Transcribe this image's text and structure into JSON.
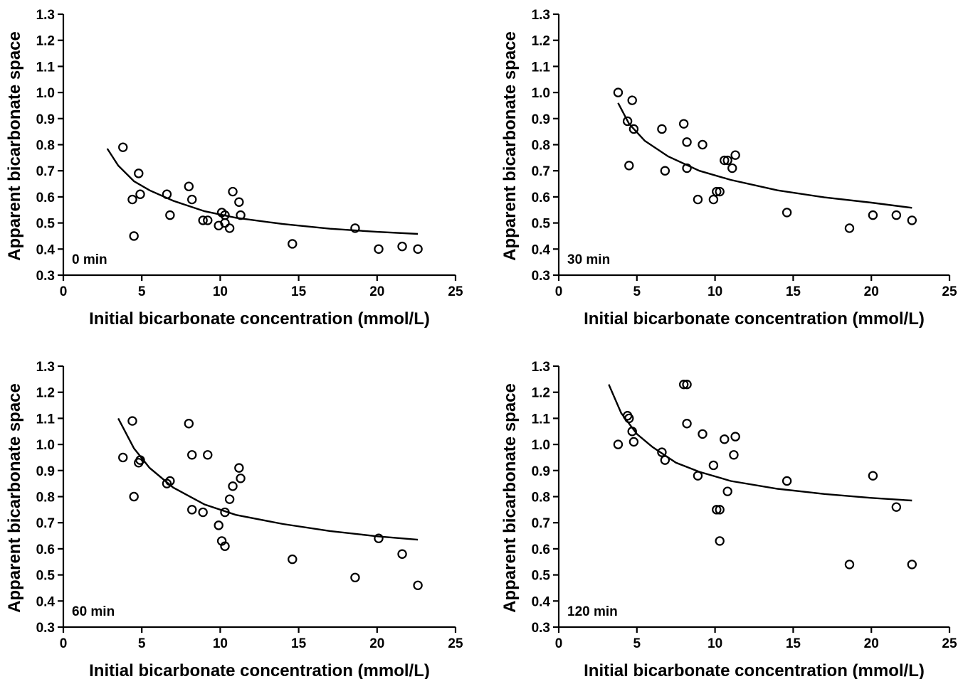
{
  "chart_data": [
    {
      "type": "scatter",
      "panel_label": "0 min",
      "xlabel": "Initial bicarbonate concentration (mmol/L)",
      "ylabel": "Apparent bicarbonate space",
      "xlim": [
        0,
        25
      ],
      "ylim": [
        0.3,
        1.3
      ],
      "xticks": [
        "0",
        "5",
        "10",
        "15",
        "20",
        "25"
      ],
      "yticks": [
        "0.3",
        "0.4",
        "0.5",
        "0.6",
        "0.7",
        "0.8",
        "0.9",
        "1.0",
        "1.1",
        "1.2",
        "1.3"
      ],
      "points": [
        {
          "x": 3.8,
          "y": 0.79
        },
        {
          "x": 4.4,
          "y": 0.59
        },
        {
          "x": 4.5,
          "y": 0.45
        },
        {
          "x": 4.8,
          "y": 0.69
        },
        {
          "x": 4.9,
          "y": 0.61
        },
        {
          "x": 6.6,
          "y": 0.61
        },
        {
          "x": 6.8,
          "y": 0.53
        },
        {
          "x": 8.0,
          "y": 0.64
        },
        {
          "x": 8.2,
          "y": 0.59
        },
        {
          "x": 8.9,
          "y": 0.51
        },
        {
          "x": 9.2,
          "y": 0.51
        },
        {
          "x": 9.9,
          "y": 0.49
        },
        {
          "x": 10.1,
          "y": 0.54
        },
        {
          "x": 10.3,
          "y": 0.53
        },
        {
          "x": 10.3,
          "y": 0.5
        },
        {
          "x": 10.6,
          "y": 0.48
        },
        {
          "x": 10.8,
          "y": 0.62
        },
        {
          "x": 11.2,
          "y": 0.58
        },
        {
          "x": 11.3,
          "y": 0.53
        },
        {
          "x": 14.6,
          "y": 0.42
        },
        {
          "x": 18.6,
          "y": 0.48
        },
        {
          "x": 20.1,
          "y": 0.4
        },
        {
          "x": 21.6,
          "y": 0.41
        },
        {
          "x": 22.6,
          "y": 0.4
        }
      ],
      "fit_curve": {
        "x": [
          2.8,
          3.5,
          4.5,
          5.5,
          7,
          9,
          11,
          14,
          17,
          20,
          22.6
        ],
        "y": [
          0.785,
          0.72,
          0.66,
          0.625,
          0.585,
          0.545,
          0.52,
          0.496,
          0.478,
          0.466,
          0.458
        ]
      }
    },
    {
      "type": "scatter",
      "panel_label": "30 min",
      "xlabel": "Initial bicarbonate concentration (mmol/L)",
      "ylabel": "Apparent bicarbonate space",
      "xlim": [
        0,
        25
      ],
      "ylim": [
        0.3,
        1.3
      ],
      "xticks": [
        "0",
        "5",
        "10",
        "15",
        "20",
        "25"
      ],
      "yticks": [
        "0.3",
        "0.4",
        "0.5",
        "0.6",
        "0.7",
        "0.8",
        "0.9",
        "1.0",
        "1.1",
        "1.2",
        "1.3"
      ],
      "points": [
        {
          "x": 3.8,
          "y": 1.0
        },
        {
          "x": 4.4,
          "y": 0.89
        },
        {
          "x": 4.5,
          "y": 0.72
        },
        {
          "x": 4.7,
          "y": 0.97
        },
        {
          "x": 4.8,
          "y": 0.86
        },
        {
          "x": 6.6,
          "y": 0.86
        },
        {
          "x": 6.8,
          "y": 0.7
        },
        {
          "x": 8.0,
          "y": 0.88
        },
        {
          "x": 8.2,
          "y": 0.81
        },
        {
          "x": 8.2,
          "y": 0.71
        },
        {
          "x": 8.9,
          "y": 0.59
        },
        {
          "x": 9.2,
          "y": 0.8
        },
        {
          "x": 9.9,
          "y": 0.59
        },
        {
          "x": 10.1,
          "y": 0.62
        },
        {
          "x": 10.3,
          "y": 0.62
        },
        {
          "x": 10.6,
          "y": 0.74
        },
        {
          "x": 10.8,
          "y": 0.74
        },
        {
          "x": 11.1,
          "y": 0.71
        },
        {
          "x": 11.3,
          "y": 0.76
        },
        {
          "x": 14.6,
          "y": 0.54
        },
        {
          "x": 18.6,
          "y": 0.48
        },
        {
          "x": 20.1,
          "y": 0.53
        },
        {
          "x": 21.6,
          "y": 0.53
        },
        {
          "x": 22.6,
          "y": 0.51
        }
      ],
      "fit_curve": {
        "x": [
          3.8,
          4.5,
          5.5,
          7,
          9,
          11,
          14,
          17,
          20,
          22.6
        ],
        "y": [
          0.96,
          0.88,
          0.815,
          0.755,
          0.7,
          0.665,
          0.625,
          0.598,
          0.578,
          0.558
        ]
      }
    },
    {
      "type": "scatter",
      "panel_label": "60 min",
      "xlabel": "Initial bicarbonate concentration (mmol/L)",
      "ylabel": "Apparent bicarbonate space",
      "xlim": [
        0,
        25
      ],
      "ylim": [
        0.3,
        1.3
      ],
      "xticks": [
        "0",
        "5",
        "10",
        "15",
        "20",
        "25"
      ],
      "yticks": [
        "0.3",
        "0.4",
        "0.5",
        "0.6",
        "0.7",
        "0.8",
        "0.9",
        "1.0",
        "1.1",
        "1.2",
        "1.3"
      ],
      "points": [
        {
          "x": 3.8,
          "y": 0.95
        },
        {
          "x": 4.4,
          "y": 1.09
        },
        {
          "x": 4.5,
          "y": 0.8
        },
        {
          "x": 4.8,
          "y": 0.93
        },
        {
          "x": 4.9,
          "y": 0.94
        },
        {
          "x": 6.6,
          "y": 0.85
        },
        {
          "x": 6.8,
          "y": 0.86
        },
        {
          "x": 8.0,
          "y": 1.08
        },
        {
          "x": 8.2,
          "y": 0.96
        },
        {
          "x": 8.2,
          "y": 0.75
        },
        {
          "x": 8.9,
          "y": 0.74
        },
        {
          "x": 9.2,
          "y": 0.96
        },
        {
          "x": 9.9,
          "y": 0.69
        },
        {
          "x": 10.1,
          "y": 0.63
        },
        {
          "x": 10.3,
          "y": 0.61
        },
        {
          "x": 10.3,
          "y": 0.74
        },
        {
          "x": 10.6,
          "y": 0.79
        },
        {
          "x": 10.8,
          "y": 0.84
        },
        {
          "x": 11.2,
          "y": 0.91
        },
        {
          "x": 11.3,
          "y": 0.87
        },
        {
          "x": 14.6,
          "y": 0.56
        },
        {
          "x": 18.6,
          "y": 0.49
        },
        {
          "x": 20.1,
          "y": 0.64
        },
        {
          "x": 21.6,
          "y": 0.58
        },
        {
          "x": 22.6,
          "y": 0.46
        }
      ],
      "fit_curve": {
        "x": [
          3.5,
          4.5,
          5.5,
          7,
          9,
          11,
          14,
          17,
          20,
          22.6
        ],
        "y": [
          1.1,
          0.985,
          0.91,
          0.835,
          0.77,
          0.73,
          0.695,
          0.668,
          0.648,
          0.635
        ]
      }
    },
    {
      "type": "scatter",
      "panel_label": "120 min",
      "xlabel": "Initial bicarbonate concentration (mmol/L)",
      "ylabel": "Apparent bicarbonate space",
      "xlim": [
        0,
        25
      ],
      "ylim": [
        0.3,
        1.3
      ],
      "xticks": [
        "0",
        "5",
        "10",
        "15",
        "20",
        "25"
      ],
      "yticks": [
        "0.3",
        "0.4",
        "0.5",
        "0.6",
        "0.7",
        "0.8",
        "0.9",
        "1.0",
        "1.1",
        "1.2",
        "1.3"
      ],
      "points": [
        {
          "x": 3.8,
          "y": 1.0
        },
        {
          "x": 4.4,
          "y": 1.11
        },
        {
          "x": 4.5,
          "y": 1.1
        },
        {
          "x": 4.7,
          "y": 1.05
        },
        {
          "x": 4.8,
          "y": 1.01
        },
        {
          "x": 6.6,
          "y": 0.97
        },
        {
          "x": 6.8,
          "y": 0.94
        },
        {
          "x": 8.0,
          "y": 1.23
        },
        {
          "x": 8.2,
          "y": 1.23
        },
        {
          "x": 8.2,
          "y": 1.08
        },
        {
          "x": 8.9,
          "y": 0.88
        },
        {
          "x": 9.2,
          "y": 1.04
        },
        {
          "x": 9.9,
          "y": 0.92
        },
        {
          "x": 10.1,
          "y": 0.75
        },
        {
          "x": 10.3,
          "y": 0.75
        },
        {
          "x": 10.3,
          "y": 0.63
        },
        {
          "x": 10.6,
          "y": 1.02
        },
        {
          "x": 10.8,
          "y": 0.82
        },
        {
          "x": 11.2,
          "y": 0.96
        },
        {
          "x": 11.3,
          "y": 1.03
        },
        {
          "x": 14.6,
          "y": 0.86
        },
        {
          "x": 18.6,
          "y": 0.54
        },
        {
          "x": 20.1,
          "y": 0.88
        },
        {
          "x": 21.6,
          "y": 0.76
        },
        {
          "x": 22.6,
          "y": 0.54
        }
      ],
      "fit_curve": {
        "x": [
          3.2,
          4,
          5,
          6,
          7.5,
          9,
          11,
          14,
          17,
          20,
          22.6
        ],
        "y": [
          1.23,
          1.12,
          1.04,
          0.99,
          0.93,
          0.895,
          0.86,
          0.83,
          0.81,
          0.795,
          0.785
        ]
      }
    }
  ]
}
